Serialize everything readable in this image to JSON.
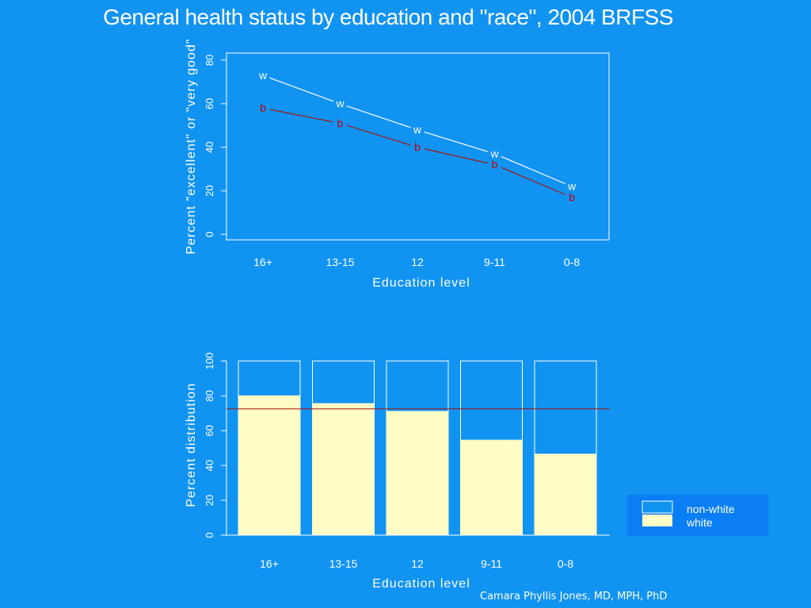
{
  "page": {
    "title": "General health status by education and \"race\", 2004 BRFSS",
    "credit": "Camara Phyllis Jones, MD, MPH, PhD"
  },
  "colors": {
    "background": "#1193f2",
    "white_line": "#ffffff",
    "black_line": "#a01818",
    "white_bar": "#fffcc4",
    "reference_line": "#a01818"
  },
  "chart_data": [
    {
      "type": "line",
      "categories": [
        "16+",
        "13-15",
        "12",
        "9-11",
        "0-8"
      ],
      "series": [
        {
          "name": "w",
          "values": [
            73,
            60,
            48,
            37,
            22
          ]
        },
        {
          "name": "b",
          "values": [
            58,
            51,
            40,
            32,
            17
          ]
        }
      ],
      "xlabel": "Education level",
      "ylabel": "Percent \"excellent\" or \"very good\"",
      "ylim": [
        0,
        83
      ],
      "yticks": [
        0,
        20,
        40,
        60,
        80
      ],
      "grid": false,
      "legend": "none"
    },
    {
      "type": "bar",
      "stacked": true,
      "categories": [
        "16+",
        "13-15",
        "12",
        "9-11",
        "0-8"
      ],
      "series": [
        {
          "name": "white",
          "values": [
            80,
            75.5,
            71,
            54.5,
            46.5
          ]
        },
        {
          "name": "non-white",
          "values": [
            20,
            24.5,
            29,
            45.5,
            53.5
          ]
        }
      ],
      "reference_line": 72.5,
      "xlabel": "Education level",
      "ylabel": "Percent distribution",
      "ylim": [
        0,
        100
      ],
      "yticks": [
        0,
        20,
        40,
        60,
        80,
        100
      ],
      "grid": false,
      "legend": "bottom-right"
    }
  ]
}
